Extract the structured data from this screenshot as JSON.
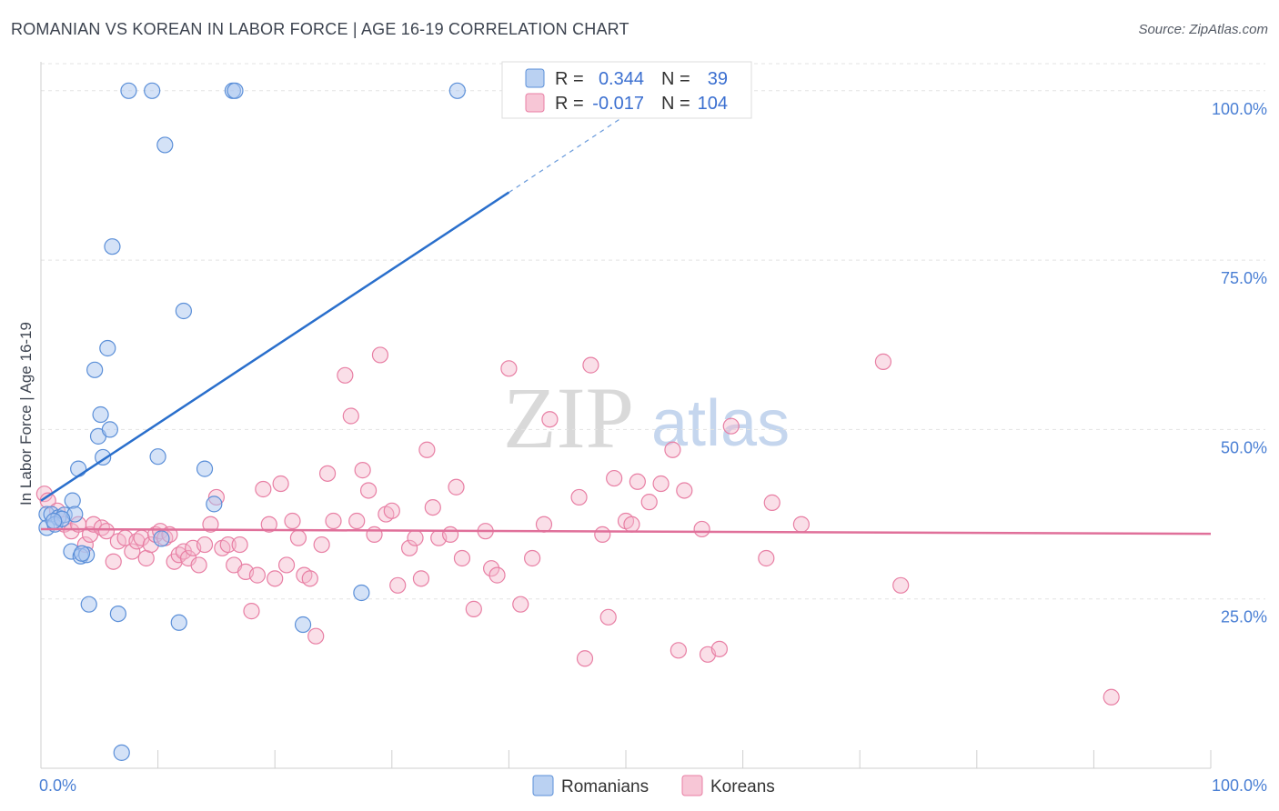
{
  "title": "ROMANIAN VS KOREAN IN LABOR FORCE | AGE 16-19 CORRELATION CHART",
  "source": "Source: ZipAtlas.com",
  "watermark": {
    "zip": "ZIP",
    "atlas": "atlas"
  },
  "legend_box": {
    "rows": [
      {
        "r_label": "R =",
        "r_value": "0.344",
        "n_label": "N =",
        "n_value": "39"
      },
      {
        "r_label": "R =",
        "r_value": "-0.017",
        "n_label": "N =",
        "n_value": "104"
      }
    ]
  },
  "bottom_legend": {
    "romanians": "Romanians",
    "koreans": "Koreans"
  },
  "colors": {
    "romanian_fill": "#a9c6ef",
    "romanian_stroke": "#5b8fd8",
    "romanian_line": "#2a6fcc",
    "korean_fill": "#f5b8cc",
    "korean_stroke": "#e87fa4",
    "korean_line": "#e0709a",
    "grid": "#e3e3e3",
    "tick": "#4a7fd4"
  },
  "chart_data": {
    "type": "scatter",
    "title": "ROMANIAN VS KOREAN IN LABOR FORCE | AGE 16-19 CORRELATION CHART",
    "xlabel": "",
    "ylabel": "In Labor Force | Age 16-19",
    "xlim": [
      0,
      100
    ],
    "ylim": [
      0,
      104
    ],
    "x_tick_labels": [
      "0.0%",
      "100.0%"
    ],
    "y_tick_labels": [
      "25.0%",
      "50.0%",
      "75.0%",
      "100.0%"
    ],
    "y_ticks": [
      25,
      50,
      75,
      100
    ],
    "grid": true,
    "legend_position": "top-center",
    "series": [
      {
        "name": "Romanians",
        "R": 0.344,
        "N": 39,
        "trend": {
          "x0": 0,
          "y0": 39.5,
          "x1": 40,
          "y1": 85,
          "dashed_to_x": 50,
          "dashed_to_y": 96.4
        },
        "points": [
          [
            7.5,
            100
          ],
          [
            9.5,
            100
          ],
          [
            16.4,
            100
          ],
          [
            16.6,
            100
          ],
          [
            35.6,
            100
          ],
          [
            10.6,
            92
          ],
          [
            6.1,
            77
          ],
          [
            12.2,
            67.5
          ],
          [
            5.7,
            62
          ],
          [
            4.6,
            58.8
          ],
          [
            5.1,
            52.2
          ],
          [
            4.9,
            49
          ],
          [
            5.9,
            50
          ],
          [
            5.3,
            45.9
          ],
          [
            10,
            46
          ],
          [
            3.2,
            44.2
          ],
          [
            14,
            44.2
          ],
          [
            0.5,
            37.5
          ],
          [
            0.9,
            37.5
          ],
          [
            1.5,
            37
          ],
          [
            2.0,
            37.4
          ],
          [
            2.7,
            39.5
          ],
          [
            2.9,
            37.5
          ],
          [
            0.5,
            35.5
          ],
          [
            1.2,
            36
          ],
          [
            1.8,
            36.8
          ],
          [
            14.8,
            39
          ],
          [
            10.3,
            33.9
          ],
          [
            2.6,
            32
          ],
          [
            3.4,
            31.3
          ],
          [
            3.9,
            31.5
          ],
          [
            3.5,
            31.7
          ],
          [
            4.1,
            24.2
          ],
          [
            6.6,
            22.8
          ],
          [
            11.8,
            21.5
          ],
          [
            22.4,
            21.2
          ],
          [
            27.4,
            25.9
          ],
          [
            6.9,
            2.3
          ],
          [
            1.1,
            36.5
          ]
        ]
      },
      {
        "name": "Koreans",
        "R": -0.017,
        "N": 104,
        "trend": {
          "x0": 0,
          "y0": 35.3,
          "x1": 100,
          "y1": 34.6
        },
        "points": [
          [
            0.3,
            40.5
          ],
          [
            0.6,
            39.5
          ],
          [
            1.4,
            38
          ],
          [
            2.0,
            36
          ],
          [
            2.6,
            35
          ],
          [
            3.2,
            36
          ],
          [
            3.8,
            33
          ],
          [
            4.2,
            34.5
          ],
          [
            4.5,
            36
          ],
          [
            5.2,
            35.5
          ],
          [
            5.6,
            35
          ],
          [
            6.2,
            30.5
          ],
          [
            6.6,
            33.5
          ],
          [
            7.2,
            34
          ],
          [
            7.8,
            32
          ],
          [
            8.2,
            33.5
          ],
          [
            8.6,
            34
          ],
          [
            9.0,
            31
          ],
          [
            9.4,
            33
          ],
          [
            9.8,
            34.5
          ],
          [
            10.2,
            35
          ],
          [
            10.6,
            34
          ],
          [
            11.0,
            34.5
          ],
          [
            11.4,
            30.5
          ],
          [
            11.8,
            31.5
          ],
          [
            12.2,
            32
          ],
          [
            12.6,
            31
          ],
          [
            13.0,
            32.5
          ],
          [
            13.5,
            30
          ],
          [
            14,
            33
          ],
          [
            14.5,
            36
          ],
          [
            15,
            40
          ],
          [
            15.5,
            32.5
          ],
          [
            16,
            33
          ],
          [
            16.5,
            30
          ],
          [
            17,
            33
          ],
          [
            17.5,
            29
          ],
          [
            18,
            23.2
          ],
          [
            18.5,
            28.5
          ],
          [
            19,
            41.2
          ],
          [
            19.5,
            36
          ],
          [
            20,
            28
          ],
          [
            20.5,
            42
          ],
          [
            21,
            30
          ],
          [
            21.5,
            36.5
          ],
          [
            22,
            34
          ],
          [
            22.5,
            28.5
          ],
          [
            23,
            28
          ],
          [
            23.5,
            19.5
          ],
          [
            24,
            33
          ],
          [
            24.5,
            43.5
          ],
          [
            25,
            36.5
          ],
          [
            26,
            58
          ],
          [
            26.5,
            52
          ],
          [
            27,
            36.5
          ],
          [
            27.5,
            44
          ],
          [
            28,
            41
          ],
          [
            28.5,
            34.5
          ],
          [
            29,
            61
          ],
          [
            29.5,
            37.5
          ],
          [
            30,
            38
          ],
          [
            30.5,
            27
          ],
          [
            31.5,
            32.5
          ],
          [
            32,
            34
          ],
          [
            32.5,
            28
          ],
          [
            33,
            47
          ],
          [
            33.5,
            38.5
          ],
          [
            34,
            34
          ],
          [
            35,
            34.5
          ],
          [
            35.5,
            41.5
          ],
          [
            36,
            31
          ],
          [
            37,
            23.5
          ],
          [
            38,
            35
          ],
          [
            38.5,
            29.5
          ],
          [
            39,
            28.5
          ],
          [
            40,
            59
          ],
          [
            41,
            24.2
          ],
          [
            42,
            31
          ],
          [
            43,
            36
          ],
          [
            43.5,
            51.5
          ],
          [
            46,
            40
          ],
          [
            46.5,
            16.2
          ],
          [
            47,
            59.5
          ],
          [
            48,
            34.5
          ],
          [
            48.5,
            22.3
          ],
          [
            49,
            42.8
          ],
          [
            50,
            36.5
          ],
          [
            50.5,
            36
          ],
          [
            51,
            42.3
          ],
          [
            52,
            39.3
          ],
          [
            53,
            42
          ],
          [
            54,
            47
          ],
          [
            54.5,
            17.4
          ],
          [
            55,
            41
          ],
          [
            56.5,
            35.3
          ],
          [
            57,
            16.8
          ],
          [
            58,
            17.6
          ],
          [
            59,
            50.5
          ],
          [
            62,
            31
          ],
          [
            62.5,
            39.2
          ],
          [
            65,
            36
          ],
          [
            72,
            60
          ],
          [
            73.5,
            27
          ],
          [
            91.5,
            10.5
          ]
        ]
      }
    ]
  }
}
